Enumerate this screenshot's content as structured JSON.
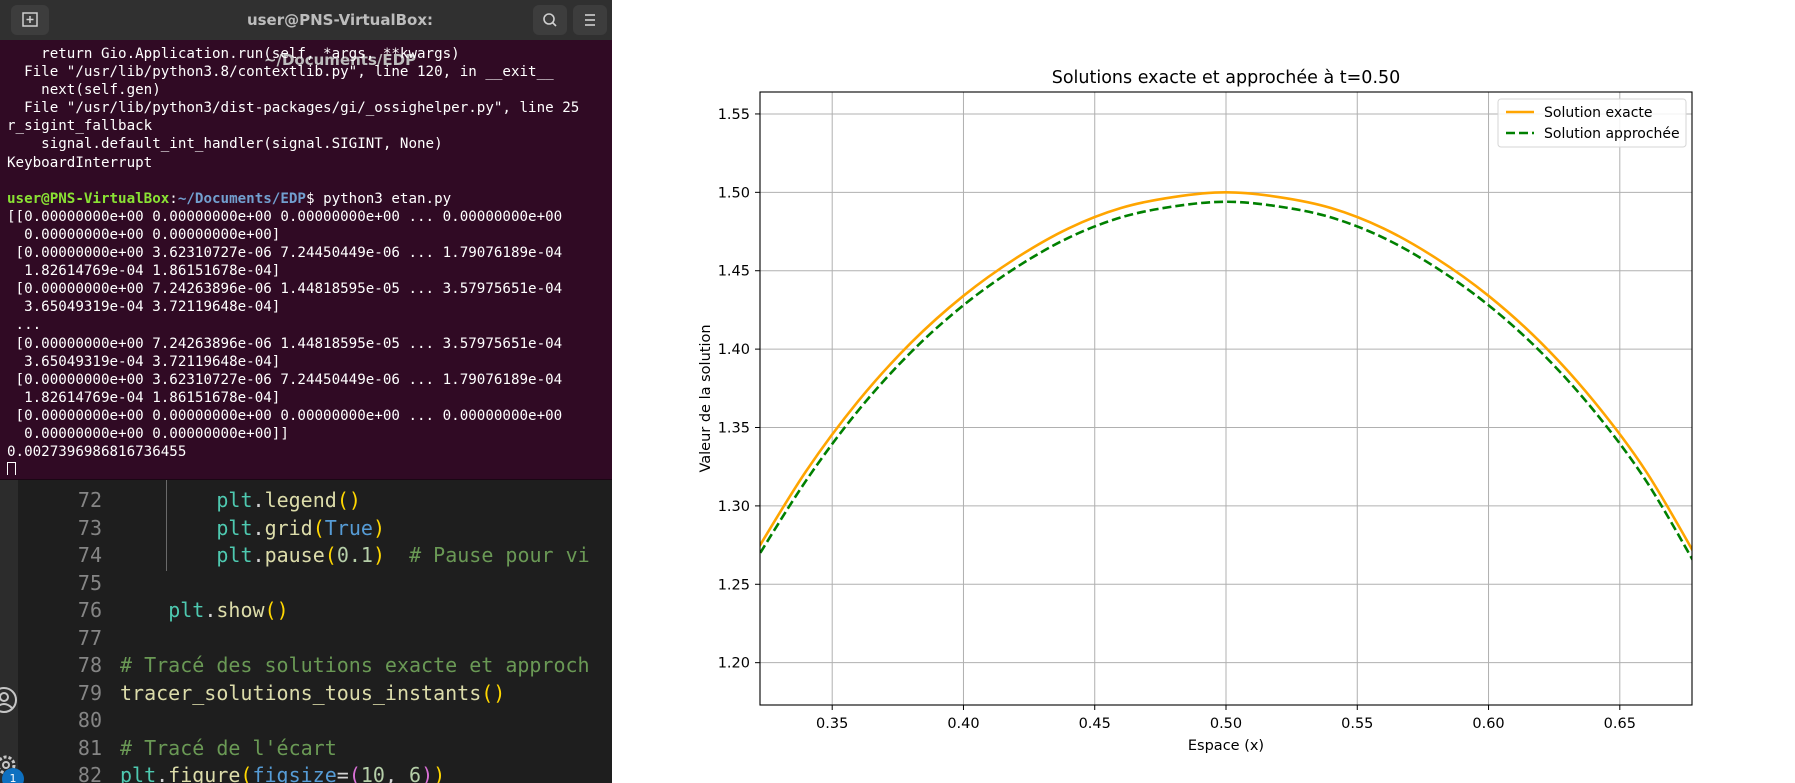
{
  "terminal": {
    "title": "user@PNS-VirtualBox: ~/Documents/EDP",
    "lines": [
      "    return Gio.Application.run(self, *args, **kwargs)",
      "  File \"/usr/lib/python3.8/contextlib.py\", line 120, in __exit__",
      "    next(self.gen)",
      "  File \"/usr/lib/python3/dist-packages/gi/_ossighelper.py\", line 25",
      "r_sigint_fallback",
      "    signal.default_int_handler(signal.SIGINT, None)",
      "KeyboardInterrupt",
      ""
    ],
    "prompt": {
      "user": "user@PNS-VirtualBox",
      "sep": ":",
      "path": "~/Documents/EDP",
      "dollar": "$ ",
      "command": "python3 etan.py"
    },
    "output": [
      "[[0.00000000e+00 0.00000000e+00 0.00000000e+00 ... 0.00000000e+00",
      "  0.00000000e+00 0.00000000e+00]",
      " [0.00000000e+00 3.62310727e-06 7.24450449e-06 ... 1.79076189e-04",
      "  1.82614769e-04 1.86151678e-04]",
      " [0.00000000e+00 7.24263896e-06 1.44818595e-05 ... 3.57975651e-04",
      "  3.65049319e-04 3.72119648e-04]",
      " ...",
      " [0.00000000e+00 7.24263896e-06 1.44818595e-05 ... 3.57975651e-04",
      "  3.65049319e-04 3.72119648e-04]",
      " [0.00000000e+00 3.62310727e-06 7.24450449e-06 ... 1.79076189e-04",
      "  1.82614769e-04 1.86151678e-04]",
      " [0.00000000e+00 0.00000000e+00 0.00000000e+00 ... 0.00000000e+00",
      "  0.00000000e+00 0.00000000e+00]]",
      "0.0027396986816736455"
    ]
  },
  "editor": {
    "lines": [
      {
        "n": "72",
        "indent": 2,
        "tokens": [
          {
            "t": "plt",
            "c": "t-fn"
          },
          {
            "t": ".",
            "c": ""
          },
          {
            "t": "legend",
            "c": "t-call"
          },
          {
            "t": "()",
            "c": "t-par"
          }
        ]
      },
      {
        "n": "73",
        "indent": 2,
        "tokens": [
          {
            "t": "plt",
            "c": "t-fn"
          },
          {
            "t": ".",
            "c": ""
          },
          {
            "t": "grid",
            "c": "t-call"
          },
          {
            "t": "(",
            "c": "t-par"
          },
          {
            "t": "True",
            "c": "t-kw"
          },
          {
            "t": ")",
            "c": "t-par"
          }
        ]
      },
      {
        "n": "74",
        "indent": 2,
        "tokens": [
          {
            "t": "plt",
            "c": "t-fn"
          },
          {
            "t": ".",
            "c": ""
          },
          {
            "t": "pause",
            "c": "t-call"
          },
          {
            "t": "(",
            "c": "t-par"
          },
          {
            "t": "0.1",
            "c": "t-num"
          },
          {
            "t": ")",
            "c": "t-par"
          },
          {
            "t": "  # Pause pour vi",
            "c": "t-cm"
          }
        ]
      },
      {
        "n": "75",
        "indent": 0,
        "tokens": []
      },
      {
        "n": "76",
        "indent": 1,
        "tokens": [
          {
            "t": "plt",
            "c": "t-fn"
          },
          {
            "t": ".",
            "c": ""
          },
          {
            "t": "show",
            "c": "t-call"
          },
          {
            "t": "()",
            "c": "t-par"
          }
        ]
      },
      {
        "n": "77",
        "indent": 0,
        "tokens": []
      },
      {
        "n": "78",
        "indent": 0,
        "tokens": [
          {
            "t": "# Tracé des solutions exacte et approch",
            "c": "t-cm"
          }
        ]
      },
      {
        "n": "79",
        "indent": 0,
        "tokens": [
          {
            "t": "tracer_solutions_tous_instants",
            "c": "t-call"
          },
          {
            "t": "()",
            "c": "t-par"
          }
        ]
      },
      {
        "n": "80",
        "indent": 0,
        "tokens": []
      },
      {
        "n": "81",
        "indent": 0,
        "tokens": [
          {
            "t": "# Tracé de l'écart",
            "c": "t-cm"
          }
        ]
      },
      {
        "n": "82",
        "indent": 0,
        "tokens": [
          {
            "t": "plt",
            "c": "t-fn"
          },
          {
            "t": ".",
            "c": ""
          },
          {
            "t": "figure",
            "c": "t-call"
          },
          {
            "t": "(",
            "c": "t-par"
          },
          {
            "t": "figsize",
            "c": "t-kw"
          },
          {
            "t": "=",
            "c": ""
          },
          {
            "t": "(",
            "c": "t-par2"
          },
          {
            "t": "10",
            "c": "t-num"
          },
          {
            "t": ", ",
            "c": ""
          },
          {
            "t": "6",
            "c": "t-num"
          },
          {
            "t": ")",
            "c": "t-par2"
          },
          {
            "t": ")",
            "c": "t-par"
          }
        ]
      }
    ],
    "badge": "1"
  },
  "chart_data": {
    "type": "line",
    "title": "Solutions exacte et approchée à t=0.50",
    "xlabel": "Espace (x)",
    "ylabel": "Valeur de la solution",
    "xlim": [
      0.3225,
      0.6775
    ],
    "ylim": [
      1.173,
      1.564
    ],
    "xticks": [
      0.35,
      0.4,
      0.45,
      0.5,
      0.55,
      0.6,
      0.65
    ],
    "yticks": [
      1.2,
      1.25,
      1.3,
      1.35,
      1.4,
      1.45,
      1.5,
      1.55
    ],
    "grid": true,
    "legend_position": "top-right",
    "series": [
      {
        "name": "Solution exacte",
        "color": "#ffa500",
        "style": "solid",
        "x": [
          0.32,
          0.34,
          0.36,
          0.38,
          0.4,
          0.42,
          0.44,
          0.46,
          0.48,
          0.5,
          0.52,
          0.54,
          0.56,
          0.58,
          0.6,
          0.62,
          0.64,
          0.66,
          0.68
        ],
        "y": [
          1.268,
          1.322,
          1.367,
          1.404,
          1.434,
          1.458,
          1.477,
          1.49,
          1.497,
          1.5,
          1.497,
          1.49,
          1.477,
          1.458,
          1.434,
          1.404,
          1.367,
          1.322,
          1.265
        ]
      },
      {
        "name": "Solution approchée",
        "color": "#008000",
        "style": "dashed",
        "x": [
          0.32,
          0.34,
          0.36,
          0.38,
          0.4,
          0.42,
          0.44,
          0.46,
          0.48,
          0.5,
          0.52,
          0.54,
          0.56,
          0.58,
          0.6,
          0.62,
          0.64,
          0.66,
          0.68
        ],
        "y": [
          1.263,
          1.316,
          1.361,
          1.398,
          1.428,
          1.452,
          1.471,
          1.484,
          1.491,
          1.494,
          1.491,
          1.484,
          1.471,
          1.452,
          1.428,
          1.398,
          1.361,
          1.316,
          1.259
        ]
      }
    ]
  }
}
